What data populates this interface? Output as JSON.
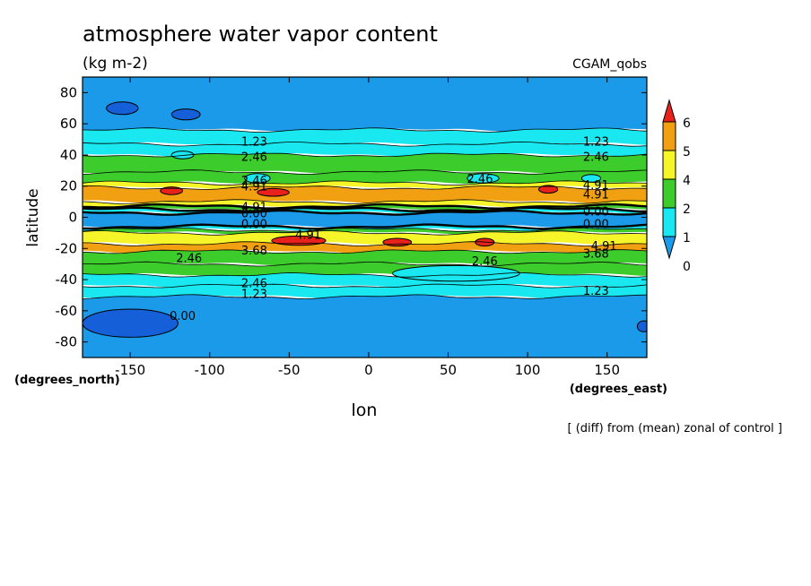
{
  "chart_data": {
    "type": "heatmap",
    "title": "atmosphere water vapor content",
    "subtitle": "(kg m-2)",
    "experiment": "CGAM_qobs",
    "xlabel": "lon",
    "ylabel": "latitude",
    "x_units": "(degrees_east)",
    "y_units": "(degrees_north)",
    "footnote": "[ (diff) from (mean) zonal of control ]",
    "xlim": [
      -180,
      175
    ],
    "ylim": [
      -90,
      90
    ],
    "x_ticks": [
      "-150",
      "-100",
      "-50",
      "0",
      "50",
      "100",
      "150"
    ],
    "x_tick_values": [
      -150,
      -100,
      -50,
      0,
      50,
      100,
      150
    ],
    "y_ticks": [
      "80",
      "60",
      "40",
      "20",
      "0",
      "-20",
      "-40",
      "-60",
      "-80"
    ],
    "y_tick_values": [
      80,
      60,
      40,
      20,
      0,
      -20,
      -40,
      -60,
      -80
    ],
    "colorbar": {
      "labels": [
        "6",
        "5",
        "4",
        "2",
        "1",
        "0"
      ],
      "colors": [
        "#e8221b",
        "#f0a010",
        "#f5f52a",
        "#3ccc2c",
        "#19e8f0",
        "#1a9ae8"
      ]
    },
    "contour_levels": [
      0.0,
      1.23,
      2.46,
      3.68,
      4.91
    ],
    "contour_labels": [
      {
        "text": "1.23",
        "lon": -72,
        "lat": 49
      },
      {
        "text": "1.23",
        "lon": 143,
        "lat": 49
      },
      {
        "text": "2.46",
        "lon": -72,
        "lat": 39
      },
      {
        "text": "2.46",
        "lon": 143,
        "lat": 39
      },
      {
        "text": "2.46",
        "lon": 70,
        "lat": 25
      },
      {
        "text": "2.46",
        "lon": -72,
        "lat": 24
      },
      {
        "text": "4.91",
        "lon": -72,
        "lat": 20
      },
      {
        "text": "4.91",
        "lon": 143,
        "lat": 21
      },
      {
        "text": "4.91",
        "lon": 143,
        "lat": 15
      },
      {
        "text": "4.91",
        "lon": -72,
        "lat": 7
      },
      {
        "text": "0.00",
        "lon": -72,
        "lat": 3
      },
      {
        "text": "0.00",
        "lon": 143,
        "lat": 4
      },
      {
        "text": "0.00",
        "lon": -72,
        "lat": -4
      },
      {
        "text": "0.00",
        "lon": 143,
        "lat": -4
      },
      {
        "text": "4.91",
        "lon": -38,
        "lat": -11
      },
      {
        "text": "4.91",
        "lon": 148,
        "lat": -18
      },
      {
        "text": "3.68",
        "lon": -72,
        "lat": -21
      },
      {
        "text": "3.68",
        "lon": 143,
        "lat": -23
      },
      {
        "text": "2.46",
        "lon": -113,
        "lat": -26
      },
      {
        "text": "2.46",
        "lon": 73,
        "lat": -28
      },
      {
        "text": "2.46",
        "lon": -72,
        "lat": -42
      },
      {
        "text": "1.23",
        "lon": -72,
        "lat": -49
      },
      {
        "text": "1.23",
        "lon": 143,
        "lat": -47
      },
      {
        "text": "0.00",
        "lon": -117,
        "lat": -63
      }
    ],
    "bands": [
      {
        "lat_top": 90,
        "lat_bot": 56,
        "level": 0
      },
      {
        "lat_top": 56,
        "lat_bot": 47,
        "level": 1
      },
      {
        "lat_top": 47,
        "lat_bot": 40,
        "level": 1
      },
      {
        "lat_top": 40,
        "lat_bot": 29,
        "level": 2
      },
      {
        "lat_top": 29,
        "lat_bot": 22,
        "level": 2
      },
      {
        "lat_top": 22,
        "lat_bot": 19,
        "level": 3
      },
      {
        "lat_top": 19,
        "lat_bot": 10,
        "level": 4
      },
      {
        "lat_top": 10,
        "lat_bot": 7,
        "level": 3
      },
      {
        "lat_top": 7,
        "lat_bot": 5,
        "level": 2
      },
      {
        "lat_top": 5,
        "lat_bot": 3,
        "level": 1
      },
      {
        "lat_top": 3,
        "lat_bot": -6,
        "level": 0
      },
      {
        "lat_top": -6,
        "lat_bot": -8,
        "level": 1
      },
      {
        "lat_top": -8,
        "lat_bot": -10,
        "level": 2
      },
      {
        "lat_top": -10,
        "lat_bot": -17,
        "level": 3
      },
      {
        "lat_top": -17,
        "lat_bot": -22,
        "level": 4
      },
      {
        "lat_top": -22,
        "lat_bot": -30,
        "level": 2
      },
      {
        "lat_top": -30,
        "lat_bot": -37,
        "level": 2
      },
      {
        "lat_top": -37,
        "lat_bot": -44,
        "level": 1
      },
      {
        "lat_top": -44,
        "lat_bot": -51,
        "level": 1
      },
      {
        "lat_top": -51,
        "lat_bot": -90,
        "level": 0
      }
    ],
    "blobs": [
      {
        "lon": -124,
        "lat": 17,
        "rlon": 7,
        "rlat": 2.5,
        "level": 5
      },
      {
        "lon": -60,
        "lat": 16,
        "rlon": 10,
        "rlat": 2.5,
        "level": 5
      },
      {
        "lon": 113,
        "lat": 18,
        "rlon": 6,
        "rlat": 2.5,
        "level": 5
      },
      {
        "lon": -44,
        "lat": -15,
        "rlon": 17,
        "rlat": 3,
        "level": 5
      },
      {
        "lon": 18,
        "lat": -16,
        "rlon": 9,
        "rlat": 2.5,
        "level": 5
      },
      {
        "lon": 73,
        "lat": -16,
        "rlon": 6,
        "rlat": 2.5,
        "level": 5
      },
      {
        "lon": -155,
        "lat": 70,
        "rlon": 10,
        "rlat": 4,
        "level": -1
      },
      {
        "lon": -115,
        "lat": 66,
        "rlon": 9,
        "rlat": 3.5,
        "level": -1
      },
      {
        "lon": -150,
        "lat": -68,
        "rlon": 30,
        "rlat": 9,
        "level": -1
      },
      {
        "lon": 173,
        "lat": -70,
        "rlon": 4,
        "rlat": 3.5,
        "level": -1
      },
      {
        "lon": -117,
        "lat": 40,
        "rlon": 7,
        "rlat": 2.5,
        "level": 1
      },
      {
        "lon": -70,
        "lat": 25,
        "rlon": 8,
        "rlat": 3,
        "level": 1
      },
      {
        "lon": 72,
        "lat": 25,
        "rlon": 10,
        "rlat": 3,
        "level": 1
      },
      {
        "lon": 140,
        "lat": 25,
        "rlon": 6,
        "rlat": 2.5,
        "level": 1
      },
      {
        "lon": 55,
        "lat": -36,
        "rlon": 40,
        "rlat": 5,
        "level": 1
      }
    ]
  }
}
